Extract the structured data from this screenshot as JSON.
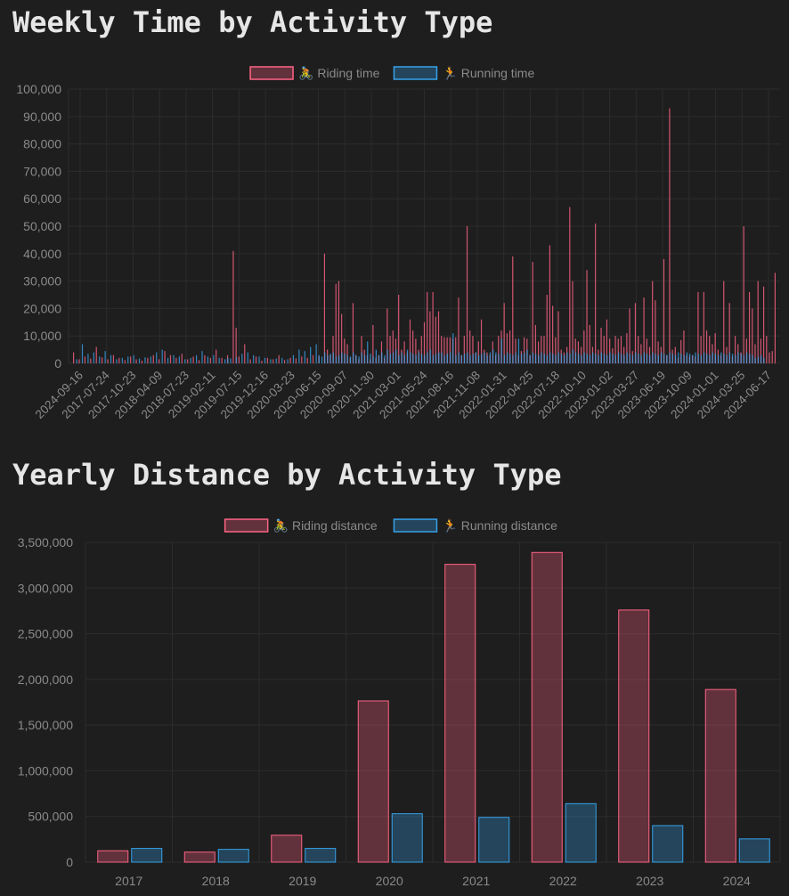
{
  "charts": [
    {
      "heading": "Weekly Time by Activity Type",
      "chart_data": {
        "type": "bar",
        "title": "Weekly Time by Activity Type",
        "xlabel": "",
        "ylabel": "",
        "ylim": [
          0,
          100000
        ],
        "y_ticks": [
          0,
          10000,
          20000,
          30000,
          40000,
          50000,
          60000,
          70000,
          80000,
          90000,
          100000
        ],
        "y_tick_labels": [
          "0",
          "10,000",
          "20,000",
          "30,000",
          "40,000",
          "50,000",
          "60,000",
          "70,000",
          "80,000",
          "90,000",
          "100,000"
        ],
        "x_tick_labels": [
          "2024-09-16",
          "2017-07-24",
          "2017-10-23",
          "2018-04-09",
          "2018-07-23",
          "2019-02-11",
          "2019-07-15",
          "2019-12-16",
          "2020-03-23",
          "2020-06-15",
          "2020-09-07",
          "2020-11-30",
          "2021-03-01",
          "2021-05-24",
          "2021-08-16",
          "2021-11-08",
          "2022-01-31",
          "2022-04-25",
          "2022-07-18",
          "2022-10-10",
          "2023-01-02",
          "2023-03-27",
          "2023-06-19",
          "2023-10-09",
          "2024-01-01",
          "2024-03-25",
          "2024-06-17"
        ],
        "legend_position": "top",
        "series": [
          {
            "name": "🚴 Riding time",
            "color": "#ff6384",
            "values": [
              4000,
              0,
              1500,
              0,
              2500,
              0,
              1800,
              0,
              6000,
              0,
              2200,
              0,
              1500,
              0,
              3000,
              0,
              2000,
              0,
              1200,
              0,
              2500,
              0,
              1500,
              0,
              1000,
              0,
              2000,
              0,
              3000,
              0,
              1500,
              0,
              4500,
              0,
              3000,
              0,
              2000,
              0,
              3500,
              0,
              1500,
              0,
              2500,
              0,
              1200,
              0,
              3000,
              0,
              2000,
              0,
              5000,
              0,
              2000,
              0,
              3000,
              0,
              41000,
              13000,
              2500,
              0,
              7000,
              0,
              1500,
              0,
              2500,
              0,
              1000,
              0,
              2000,
              0,
              1500,
              0,
              3000,
              0,
              1200,
              0,
              2000,
              0,
              1800,
              0,
              2500,
              0,
              2000,
              0,
              3000,
              0,
              2500,
              0,
              40000,
              5000,
              3000,
              10000,
              29000,
              30000,
              18000,
              9000,
              7000,
              2000,
              22000,
              3000,
              1500,
              10000,
              5000,
              3000,
              1500,
              14000,
              2000,
              3000,
              8000,
              2000,
              20000,
              10000,
              12000,
              9000,
              25000,
              5000,
              8000,
              4000,
              16000,
              12000,
              9000,
              5000,
              10000,
              15000,
              26000,
              19000,
              26000,
              17000,
              19000,
              10000,
              9500,
              9500,
              9500,
              9000,
              9500,
              24000,
              3000,
              10000,
              50000,
              12000,
              10000,
              4000,
              8000,
              16000,
              5000,
              4000,
              3000,
              8000,
              3000,
              10000,
              12000,
              22000,
              11000,
              12000,
              39000,
              9000,
              3000,
              4500,
              9500,
              9000,
              3000,
              37000,
              14000,
              8000,
              10000,
              10000,
              25000,
              43000,
              21000,
              9500,
              19000,
              5000,
              4000,
              6000,
              57000,
              30000,
              9000,
              8000,
              6000,
              12000,
              34000,
              14000,
              6000,
              51000,
              5000,
              13000,
              10000,
              16000,
              9000,
              5500,
              10000,
              9000,
              10000,
              6000,
              11000,
              20000,
              4500,
              22000,
              10000,
              7000,
              24000,
              9000,
              6000,
              30000,
              23000,
              8000,
              6000,
              38000,
              3000,
              93000,
              5000,
              6000,
              2000,
              8500,
              12000,
              3000,
              2500,
              3000,
              2500,
              26000,
              10000,
              26000,
              12000,
              10000,
              7000,
              11000,
              5000,
              3000,
              30000,
              6000,
              22000,
              2500,
              10000,
              7000,
              4000,
              50000,
              9000,
              26000,
              20000,
              7000,
              30000,
              9000,
              28000,
              10000,
              4000,
              4500,
              33000
            ]
          },
          {
            "name": "🏃 Running time",
            "color": "#36a2eb",
            "values": [
              0,
              1500,
              0,
              7000,
              0,
              3500,
              0,
              4000,
              0,
              2500,
              0,
              4500,
              0,
              3000,
              0,
              1500,
              0,
              2000,
              0,
              2500,
              0,
              3000,
              0,
              1800,
              0,
              2200,
              0,
              2500,
              0,
              4000,
              0,
              5000,
              0,
              2000,
              0,
              3000,
              0,
              2500,
              0,
              1500,
              0,
              2000,
              0,
              3000,
              0,
              4500,
              0,
              2500,
              0,
              3000,
              0,
              2000,
              0,
              1500,
              2000,
              1800,
              0,
              2200,
              0,
              3500,
              0,
              4000,
              0,
              3000,
              0,
              2500,
              0,
              2000,
              0,
              1500,
              0,
              1800,
              0,
              2000,
              0,
              1500,
              0,
              3000,
              0,
              5000,
              0,
              4500,
              0,
              6000,
              0,
              7000,
              3000,
              2500,
              4000,
              3000,
              3500,
              4000,
              2500,
              3000,
              4000,
              3500,
              3000,
              2500,
              4000,
              3000,
              2500,
              4000,
              3000,
              8000,
              3500,
              2500,
              5000,
              3000,
              4000,
              3000,
              5000,
              3500,
              4000,
              5000,
              3000,
              4000,
              3000,
              5000,
              4000,
              3500,
              3000,
              4000,
              3500,
              3000,
              4000,
              5000,
              3000,
              3500,
              4000,
              4000,
              3000,
              3500,
              4000,
              11000,
              3000,
              4000,
              3000,
              3500,
              4000,
              3000,
              3500,
              4000,
              3000,
              3500,
              4000,
              3000,
              4000,
              5000,
              4000,
              3500,
              9000,
              3000,
              4000,
              3500,
              3000,
              4000,
              9000,
              3500,
              4000,
              5000,
              3000,
              4000,
              3500,
              3000,
              4000,
              3500,
              3000,
              4000,
              3500,
              3000,
              4000,
              3500,
              3000,
              4000,
              3500,
              5000,
              4000,
              3500,
              3000,
              4000,
              3500,
              3000,
              4000,
              3500,
              3000,
              4000,
              3500,
              3000,
              4000,
              3500,
              3000,
              4000,
              3500,
              3000,
              4000,
              3500,
              3000,
              4000,
              3500,
              3000,
              4000,
              3500,
              3000,
              4000,
              3500,
              3000,
              4000,
              3500,
              3000,
              4000,
              3500,
              3000,
              4000,
              3500,
              3000,
              4000,
              3500,
              3000,
              4000,
              3500,
              3000,
              4000,
              3500,
              3000,
              4000,
              3500,
              3000,
              4000,
              3500,
              3000,
              4000,
              3500,
              3000,
              4000,
              3500,
              3000,
              4000,
              3500,
              3000,
              2000,
              2500,
              3000,
              2000
            ]
          }
        ]
      }
    },
    {
      "heading": "Yearly Distance by Activity Type",
      "chart_data": {
        "type": "bar",
        "title": "Yearly Distance by Activity Type",
        "xlabel": "",
        "ylabel": "",
        "ylim": [
          0,
          3500000
        ],
        "y_ticks": [
          0,
          500000,
          1000000,
          1500000,
          2000000,
          2500000,
          3000000,
          3500000
        ],
        "y_tick_labels": [
          "0",
          "500,000",
          "1,000,000",
          "1,500,000",
          "2,000,000",
          "2,500,000",
          "3,000,000",
          "3,500,000"
        ],
        "categories": [
          "2017",
          "2018",
          "2019",
          "2020",
          "2021",
          "2022",
          "2023",
          "2024"
        ],
        "legend_position": "top",
        "series": [
          {
            "name": "🚴 Riding distance",
            "color": "#ff6384",
            "values": [
              125000,
              110000,
              295000,
              1765000,
              3260000,
              3390000,
              2760000,
              1890000
            ]
          },
          {
            "name": "🏃 Running distance",
            "color": "#36a2eb",
            "values": [
              150000,
              140000,
              150000,
              530000,
              490000,
              640000,
              400000,
              255000
            ]
          }
        ]
      }
    }
  ]
}
